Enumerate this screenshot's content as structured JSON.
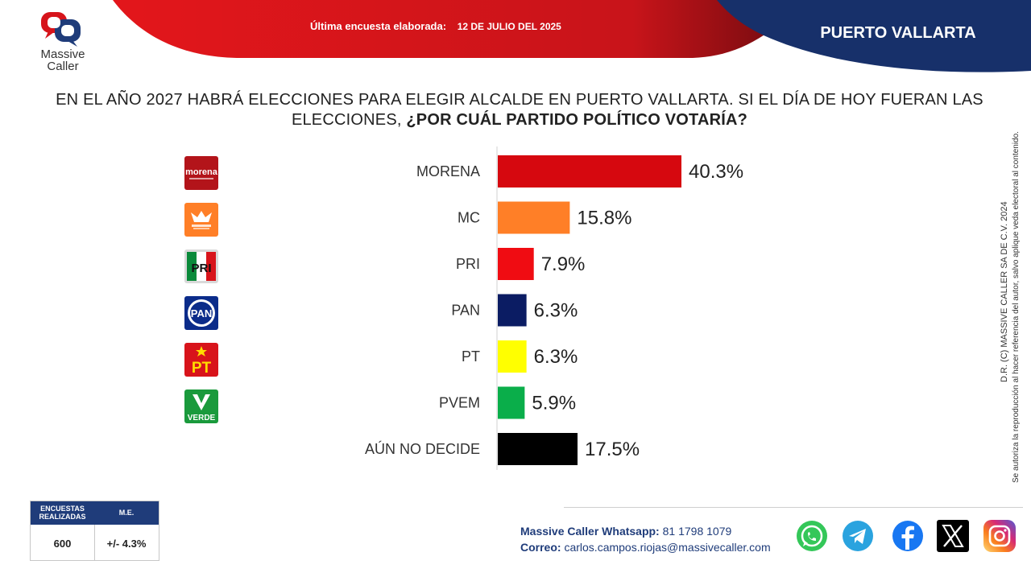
{
  "header": {
    "brand_line1": "Massive",
    "brand_line2": "Caller",
    "survey_label": "Última encuesta elaborada:",
    "survey_date": "12 DE JULIO DEL 2025",
    "city": "PUERTO VALLARTA",
    "colors": {
      "red_banner": "#d9151b",
      "navy_banner": "#17306a"
    }
  },
  "question": {
    "text": "EN EL AÑO 2027 HABRÁ ELECCIONES PARA ELEGIR ALCALDE EN PUERTO VALLARTA. SI EL DÍA DE HOY FUERAN LAS ELECCIONES, ",
    "emphasis": "¿POR CUÁL PARTIDO POLÍTICO VOTARÍA?"
  },
  "chart_data": {
    "type": "bar",
    "orientation": "horizontal",
    "categories": [
      "MORENA",
      "MC",
      "PRI",
      "PAN",
      "PT",
      "PVEM",
      "AÚN NO DECIDE"
    ],
    "values": [
      40.3,
      15.8,
      7.9,
      6.3,
      6.3,
      5.9,
      17.5
    ],
    "value_labels": [
      "40.3%",
      "15.8%",
      "7.9%",
      "6.3%",
      "6.3%",
      "5.9%",
      "17.5%"
    ],
    "colors": [
      "#d6080f",
      "#ff7f27",
      "#f00c12",
      "#0b1c63",
      "#ffff00",
      "#0aae4a",
      "#000000"
    ],
    "grid": false
  },
  "party_logos": [
    {
      "icon": "morena-logo-icon",
      "text": "morena",
      "color": "#b3141a"
    },
    {
      "icon": "mc-logo-icon",
      "text": "CIUDADANO",
      "color": "#ff7f27"
    },
    {
      "icon": "pri-logo-icon",
      "text": "PRI",
      "color": "#ffffff"
    },
    {
      "icon": "pan-logo-icon",
      "text": "PAN",
      "color": "#0b2c8a"
    },
    {
      "icon": "pt-logo-icon",
      "text": "PT",
      "color": "#d8141b"
    },
    {
      "icon": "pvem-logo-icon",
      "text": "VERDE",
      "color": "#1a9a3c"
    }
  ],
  "copyright": {
    "line1": "D.R. (C) MASSIVE CALLER SA DE C.V. 2024",
    "line2": "Se autoriza la reproducción al hacer referencia del autor, salvo aplique veda electoral al contenido."
  },
  "stats": {
    "h1_line1": "ENCUESTAS",
    "h1_line2": "REALIZADAS",
    "h2": "M.E.",
    "v1": "600",
    "v2": "+/- 4.3%"
  },
  "contact": {
    "whatsapp_label": "Massive Caller Whatsapp:",
    "whatsapp_value": "81 1798 1079",
    "email_label": "Correo:",
    "email_value": "carlos.campos.riojas@massivecaller.com"
  },
  "social_icons": [
    "whatsapp-icon",
    "telegram-icon",
    "facebook-icon",
    "x-icon",
    "instagram-icon"
  ]
}
